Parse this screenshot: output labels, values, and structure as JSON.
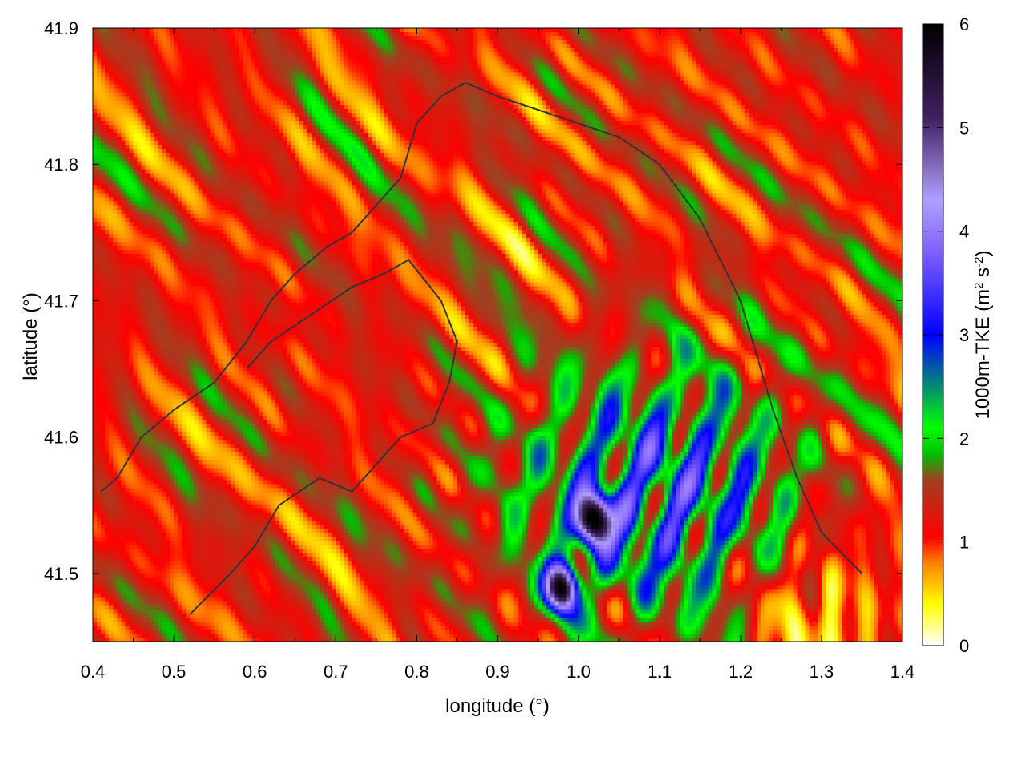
{
  "chart_data": {
    "type": "heatmap",
    "title": "",
    "xlabel": "longitude (°)",
    "ylabel": "latitude (°)",
    "xlim": [
      0.4,
      1.4
    ],
    "ylim": [
      41.45,
      41.9
    ],
    "x_ticks": [
      "0.4",
      "0.5",
      "0.6",
      "0.7",
      "0.8",
      "0.9",
      "1.0",
      "1.1",
      "1.2",
      "1.3",
      "1.4"
    ],
    "y_ticks": [
      "41.5",
      "41.6",
      "41.7",
      "41.8",
      "41.9"
    ],
    "colorbar": {
      "label_html": "1000m-TKE (m<tspan baseline-shift=\"super\" font-size=\"15\">2</tspan> s<tspan baseline-shift=\"super\" font-size=\"15\">-2</tspan>)",
      "label_parts": [
        "1000m-TKE (m",
        "2",
        " s",
        "-2",
        ")"
      ],
      "range": [
        0,
        6
      ],
      "ticks": [
        "0",
        "1",
        "2",
        "3",
        "4",
        "5",
        "6"
      ],
      "colors": [
        "#ffffff",
        "#ffff00",
        "#ff8000",
        "#ff0000",
        "#a04020",
        "#00c000",
        "#00ff00",
        "#0000ff",
        "#8060ff",
        "#b0a0ff",
        "#402060",
        "#000000"
      ],
      "stops": [
        0,
        0.4,
        0.8,
        1.05,
        1.6,
        1.85,
        2.1,
        3.0,
        3.8,
        4.3,
        5.1,
        6.0
      ]
    },
    "field_description": {
      "background_level": 1.2,
      "high_region_center_lonlat": [
        1.1,
        41.56
      ],
      "peak_values": [
        {
          "lon": 1.02,
          "lat": 41.54,
          "value": 6.0
        },
        {
          "lon": 0.98,
          "lat": 41.49,
          "value": 5.6
        }
      ],
      "low_region_center_lonlat": [
        1.3,
        41.47
      ]
    },
    "contours": [
      [
        [
          0.41,
          41.56
        ],
        [
          0.43,
          41.57
        ],
        [
          0.46,
          41.6
        ],
        [
          0.5,
          41.62
        ],
        [
          0.55,
          41.64
        ],
        [
          0.59,
          41.67
        ],
        [
          0.62,
          41.7
        ],
        [
          0.65,
          41.72
        ],
        [
          0.69,
          41.74
        ],
        [
          0.72,
          41.75
        ],
        [
          0.75,
          41.77
        ],
        [
          0.78,
          41.79
        ],
        [
          0.8,
          41.83
        ],
        [
          0.83,
          41.85
        ],
        [
          0.86,
          41.86
        ],
        [
          0.9,
          41.85
        ],
        [
          0.95,
          41.84
        ],
        [
          1.0,
          41.83
        ],
        [
          1.05,
          41.82
        ],
        [
          1.1,
          41.8
        ],
        [
          1.15,
          41.76
        ],
        [
          1.2,
          41.7
        ],
        [
          1.24,
          41.62
        ],
        [
          1.27,
          41.57
        ],
        [
          1.3,
          41.53
        ],
        [
          1.35,
          41.5
        ]
      ],
      [
        [
          0.52,
          41.47
        ],
        [
          0.57,
          41.5
        ],
        [
          0.6,
          41.52
        ],
        [
          0.63,
          41.55
        ],
        [
          0.68,
          41.57
        ],
        [
          0.72,
          41.56
        ],
        [
          0.75,
          41.58
        ],
        [
          0.78,
          41.6
        ],
        [
          0.82,
          41.61
        ],
        [
          0.84,
          41.64
        ],
        [
          0.85,
          41.67
        ],
        [
          0.83,
          41.7
        ],
        [
          0.79,
          41.73
        ],
        [
          0.76,
          41.72
        ],
        [
          0.72,
          41.71
        ],
        [
          0.67,
          41.69
        ],
        [
          0.62,
          41.67
        ],
        [
          0.59,
          41.65
        ]
      ]
    ]
  }
}
